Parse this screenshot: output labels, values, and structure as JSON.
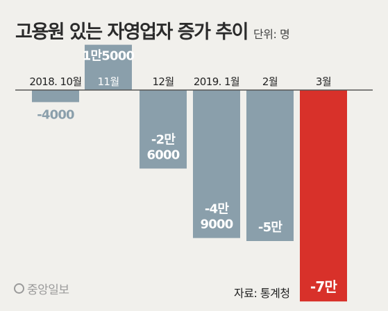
{
  "title": "고용원 있는 자영업자 증가 추이",
  "unit_label": "단위: 명",
  "source": "자료: 통계청",
  "logo_text": "중앙일보",
  "colors": {
    "bar": "#8a9fab",
    "highlight": "#d8312a",
    "background": "#f1f0ec",
    "axis": "#555555",
    "text": "#222222",
    "negative_label_outside": "#8a9fab"
  },
  "chart_data": {
    "type": "bar",
    "title": "고용원 있는 자영업자 증가 추이",
    "ylabel": "",
    "xlabel": "",
    "unit": "명",
    "categories": [
      "2018. 10월",
      "11월",
      "12월",
      "2019. 1월",
      "2월",
      "3월"
    ],
    "values": [
      -4000,
      15000,
      -26000,
      -49000,
      -50000,
      -70000
    ],
    "data_labels": [
      [
        "-4000"
      ],
      [
        "1만5000"
      ],
      [
        "-2만",
        "6000"
      ],
      [
        "-4만",
        "9000"
      ],
      [
        "-5만"
      ],
      [
        "-7만"
      ]
    ],
    "highlight_index": 5,
    "ylim": [
      -70000,
      15000
    ],
    "grid": false,
    "legend": "none"
  }
}
